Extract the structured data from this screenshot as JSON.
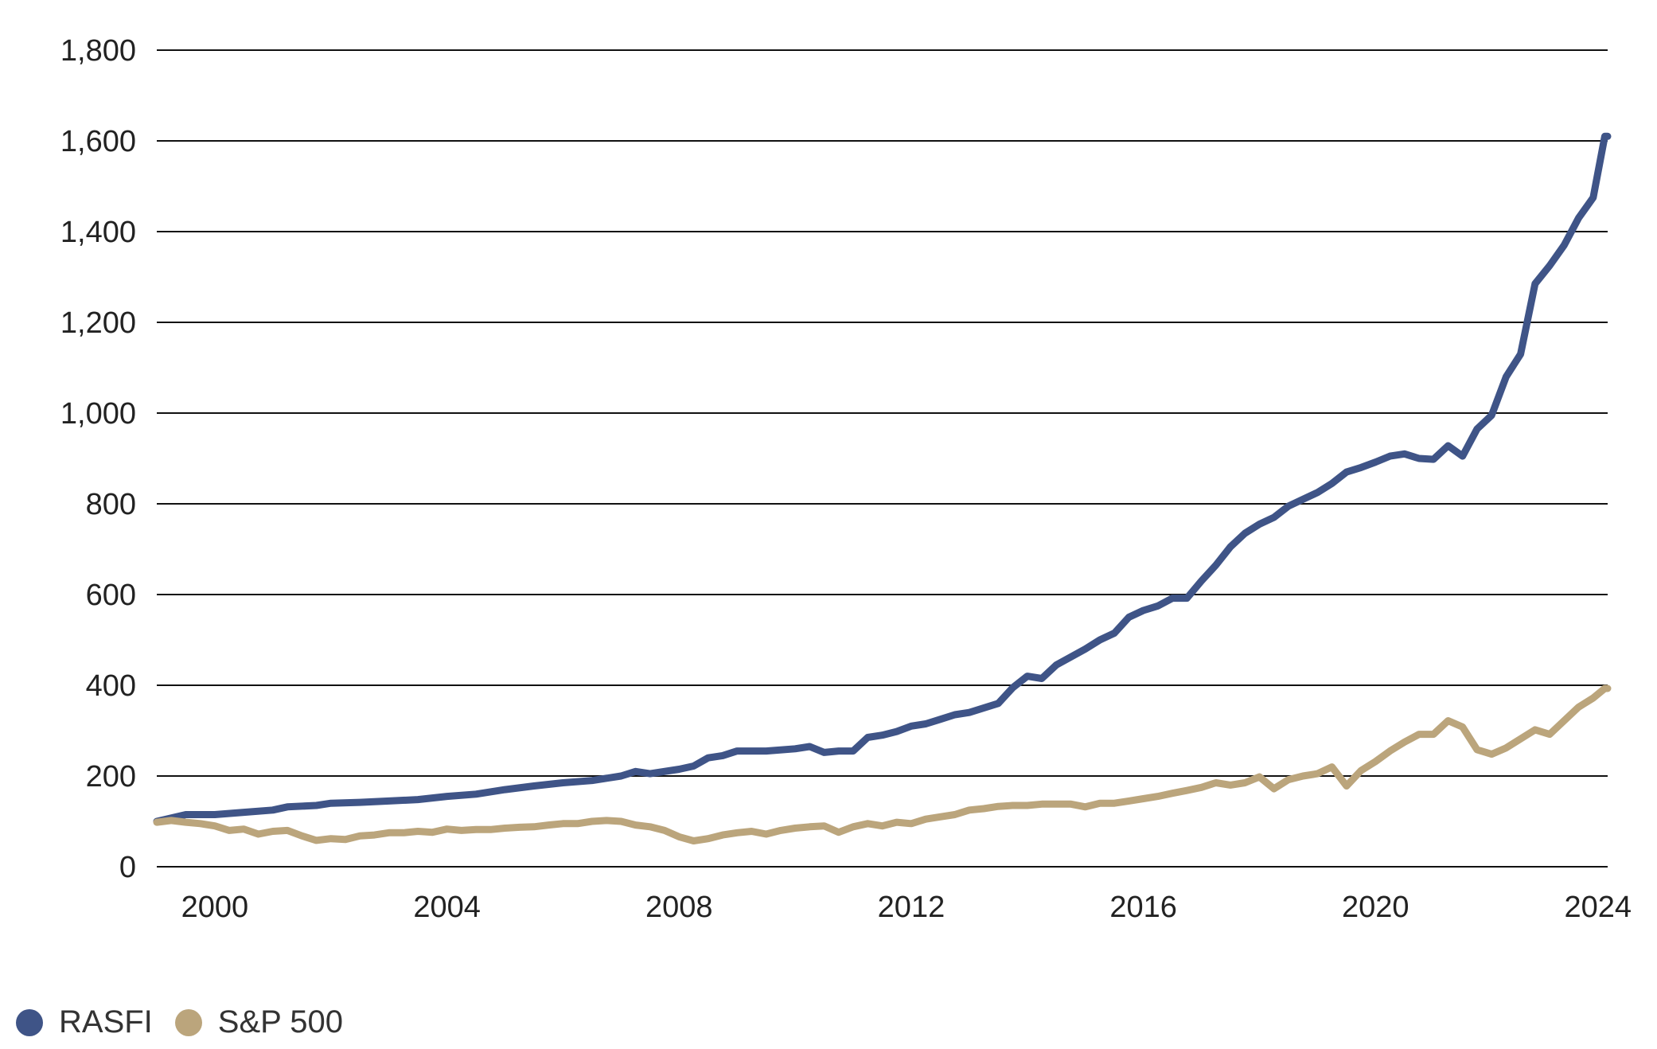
{
  "chart_data": {
    "type": "line",
    "title": "",
    "xlabel": "",
    "ylabel": "",
    "xlim": [
      1999.0,
      2024.0
    ],
    "ylim": [
      0,
      1800
    ],
    "y_ticks": [
      0,
      200,
      400,
      600,
      800,
      1000,
      1200,
      1400,
      1600,
      1800
    ],
    "y_tick_labels": [
      "0",
      "200",
      "400",
      "600",
      "800",
      "1,000",
      "1,200",
      "1,400",
      "1,600",
      "1,800"
    ],
    "x_ticks": [
      2000,
      2004,
      2008,
      2012,
      2016,
      2020,
      2024
    ],
    "x_tick_labels": [
      "2000",
      "2004",
      "2008",
      "2012",
      "2016",
      "2020",
      "2024"
    ],
    "grid": "horizontal",
    "legend_position": "bottom-left",
    "series": [
      {
        "name": "RASFI",
        "color": "#3f5487",
        "points": [
          [
            1999.0,
            100
          ],
          [
            1999.5,
            115
          ],
          [
            2000.0,
            115
          ],
          [
            2000.5,
            120
          ],
          [
            2001.0,
            125
          ],
          [
            2001.25,
            132
          ],
          [
            2001.75,
            135
          ],
          [
            2002.0,
            140
          ],
          [
            2002.5,
            142
          ],
          [
            2003.0,
            145
          ],
          [
            2003.5,
            148
          ],
          [
            2004.0,
            155
          ],
          [
            2004.5,
            160
          ],
          [
            2005.0,
            170
          ],
          [
            2005.5,
            178
          ],
          [
            2006.0,
            185
          ],
          [
            2006.5,
            190
          ],
          [
            2007.0,
            200
          ],
          [
            2007.25,
            210
          ],
          [
            2007.5,
            205
          ],
          [
            2008.0,
            215
          ],
          [
            2008.25,
            222
          ],
          [
            2008.5,
            240
          ],
          [
            2008.75,
            245
          ],
          [
            2009.0,
            255
          ],
          [
            2009.5,
            255
          ],
          [
            2010.0,
            260
          ],
          [
            2010.25,
            265
          ],
          [
            2010.5,
            252
          ],
          [
            2010.75,
            255
          ],
          [
            2011.0,
            255
          ],
          [
            2011.25,
            285
          ],
          [
            2011.5,
            290
          ],
          [
            2011.75,
            298
          ],
          [
            2012.0,
            310
          ],
          [
            2012.25,
            315
          ],
          [
            2012.5,
            325
          ],
          [
            2012.75,
            335
          ],
          [
            2013.0,
            340
          ],
          [
            2013.5,
            360
          ],
          [
            2013.75,
            395
          ],
          [
            2014.0,
            420
          ],
          [
            2014.25,
            415
          ],
          [
            2014.5,
            445
          ],
          [
            2015.0,
            480
          ],
          [
            2015.25,
            500
          ],
          [
            2015.5,
            515
          ],
          [
            2015.75,
            550
          ],
          [
            2016.0,
            565
          ],
          [
            2016.25,
            575
          ],
          [
            2016.5,
            592
          ],
          [
            2016.75,
            592
          ],
          [
            2017.0,
            630
          ],
          [
            2017.25,
            665
          ],
          [
            2017.5,
            705
          ],
          [
            2017.75,
            735
          ],
          [
            2018.0,
            755
          ],
          [
            2018.25,
            770
          ],
          [
            2018.5,
            795
          ],
          [
            2018.75,
            810
          ],
          [
            2019.0,
            825
          ],
          [
            2019.25,
            845
          ],
          [
            2019.5,
            870
          ],
          [
            2019.75,
            880
          ],
          [
            2020.0,
            892
          ],
          [
            2020.25,
            905
          ],
          [
            2020.5,
            910
          ],
          [
            2020.75,
            900
          ],
          [
            2021.0,
            898
          ],
          [
            2021.25,
            928
          ],
          [
            2021.5,
            905
          ],
          [
            2021.75,
            965
          ],
          [
            2022.0,
            995
          ],
          [
            2022.25,
            1080
          ],
          [
            2022.5,
            1130
          ],
          [
            2022.75,
            1285
          ],
          [
            2023.0,
            1325
          ],
          [
            2023.25,
            1370
          ],
          [
            2023.5,
            1430
          ],
          [
            2023.75,
            1475
          ],
          [
            2023.95,
            1610
          ],
          [
            2024.0,
            1610
          ]
        ]
      },
      {
        "name": "S&P 500",
        "color": "#bba57c",
        "points": [
          [
            1999.0,
            98
          ],
          [
            1999.25,
            102
          ],
          [
            1999.5,
            98
          ],
          [
            1999.75,
            95
          ],
          [
            2000.0,
            90
          ],
          [
            2000.25,
            80
          ],
          [
            2000.5,
            83
          ],
          [
            2000.75,
            72
          ],
          [
            2001.0,
            78
          ],
          [
            2001.25,
            80
          ],
          [
            2001.5,
            68
          ],
          [
            2001.75,
            58
          ],
          [
            2002.0,
            62
          ],
          [
            2002.25,
            60
          ],
          [
            2002.5,
            68
          ],
          [
            2002.75,
            70
          ],
          [
            2003.0,
            75
          ],
          [
            2003.25,
            75
          ],
          [
            2003.5,
            78
          ],
          [
            2003.75,
            76
          ],
          [
            2004.0,
            83
          ],
          [
            2004.25,
            80
          ],
          [
            2004.5,
            82
          ],
          [
            2004.75,
            82
          ],
          [
            2005.0,
            85
          ],
          [
            2005.25,
            87
          ],
          [
            2005.5,
            88
          ],
          [
            2005.75,
            92
          ],
          [
            2006.0,
            95
          ],
          [
            2006.25,
            95
          ],
          [
            2006.5,
            100
          ],
          [
            2006.75,
            102
          ],
          [
            2007.0,
            100
          ],
          [
            2007.25,
            92
          ],
          [
            2007.5,
            88
          ],
          [
            2007.75,
            80
          ],
          [
            2008.0,
            66
          ],
          [
            2008.25,
            57
          ],
          [
            2008.5,
            62
          ],
          [
            2008.75,
            70
          ],
          [
            2009.0,
            75
          ],
          [
            2009.25,
            78
          ],
          [
            2009.5,
            72
          ],
          [
            2009.75,
            80
          ],
          [
            2010.0,
            85
          ],
          [
            2010.25,
            88
          ],
          [
            2010.5,
            90
          ],
          [
            2010.75,
            76
          ],
          [
            2011.0,
            88
          ],
          [
            2011.25,
            95
          ],
          [
            2011.5,
            90
          ],
          [
            2011.75,
            98
          ],
          [
            2012.0,
            95
          ],
          [
            2012.25,
            105
          ],
          [
            2012.5,
            110
          ],
          [
            2012.75,
            115
          ],
          [
            2013.0,
            125
          ],
          [
            2013.25,
            128
          ],
          [
            2013.5,
            133
          ],
          [
            2013.75,
            135
          ],
          [
            2014.0,
            135
          ],
          [
            2014.25,
            138
          ],
          [
            2014.5,
            138
          ],
          [
            2014.75,
            138
          ],
          [
            2015.0,
            132
          ],
          [
            2015.25,
            140
          ],
          [
            2015.5,
            140
          ],
          [
            2015.75,
            145
          ],
          [
            2016.0,
            150
          ],
          [
            2016.25,
            155
          ],
          [
            2016.5,
            162
          ],
          [
            2016.75,
            168
          ],
          [
            2017.0,
            175
          ],
          [
            2017.25,
            185
          ],
          [
            2017.5,
            180
          ],
          [
            2017.75,
            185
          ],
          [
            2018.0,
            198
          ],
          [
            2018.25,
            172
          ],
          [
            2018.5,
            192
          ],
          [
            2018.75,
            200
          ],
          [
            2019.0,
            205
          ],
          [
            2019.25,
            220
          ],
          [
            2019.5,
            178
          ],
          [
            2019.75,
            212
          ],
          [
            2020.0,
            232
          ],
          [
            2020.25,
            255
          ],
          [
            2020.5,
            275
          ],
          [
            2020.75,
            292
          ],
          [
            2021.0,
            292
          ],
          [
            2021.25,
            322
          ],
          [
            2021.5,
            308
          ],
          [
            2021.75,
            258
          ],
          [
            2022.0,
            248
          ],
          [
            2022.25,
            262
          ],
          [
            2022.5,
            282
          ],
          [
            2022.75,
            302
          ],
          [
            2023.0,
            292
          ],
          [
            2023.25,
            322
          ],
          [
            2023.5,
            352
          ],
          [
            2023.75,
            372
          ],
          [
            2023.95,
            393
          ],
          [
            2024.0,
            393
          ]
        ]
      }
    ]
  }
}
